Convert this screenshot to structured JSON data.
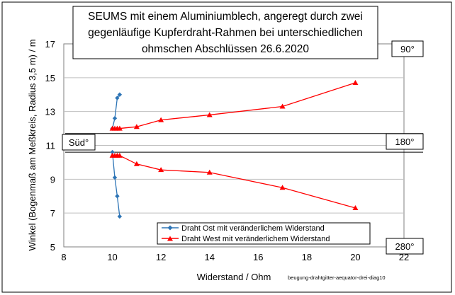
{
  "chart_data": {
    "type": "line",
    "title_lines": [
      "SEUMS mit einem Aluminiumblech, angeregt durch zwei",
      "gegenläufige Kupferdraht-Rahmen bei unterschiedlichen",
      "ohmschen Abschlüssen 26.6.2020"
    ],
    "xlabel": "Widerstand / Ohm",
    "ylabel": "Winkel (Bogenmaß am Meßkreis, Radius 3,5 m) / m",
    "xlim": [
      8,
      22
    ],
    "ylim": [
      5,
      17
    ],
    "x_ticks": [
      8,
      10,
      12,
      14,
      16,
      18,
      20,
      22
    ],
    "y_ticks": [
      5,
      7,
      9,
      11,
      13,
      15,
      17
    ],
    "x_tick_labels": [
      "8",
      "10",
      "12",
      "14",
      "16",
      "18",
      "20",
      "22"
    ],
    "y_tick_labels": [
      "5",
      "7",
      "9",
      "11",
      "13",
      "15",
      "17"
    ],
    "grid": "horizontal",
    "legend_position": "bottom-center",
    "series": [
      {
        "name": "Draht Ost mit veränderlichem Widerstand",
        "color": "#2e75b6",
        "marker": "diamond",
        "groups": [
          [
            [
              10,
              12.0
            ],
            [
              10.1,
              12.6
            ],
            [
              10.2,
              13.8
            ],
            [
              10.3,
              14.0
            ]
          ],
          [
            [
              10,
              10.6
            ],
            [
              10.1,
              9.1
            ],
            [
              10.2,
              8.0
            ],
            [
              10.3,
              6.8
            ]
          ]
        ]
      },
      {
        "name": "Draht West mit veränderlichem Widerstand",
        "color": "#ff0000",
        "marker": "triangle",
        "groups": [
          [
            [
              10,
              12.0
            ],
            [
              10.1,
              12.0
            ],
            [
              10.2,
              12.0
            ],
            [
              10.3,
              12.0
            ],
            [
              11,
              12.1
            ],
            [
              12,
              12.5
            ],
            [
              14,
              12.8
            ],
            [
              17,
              13.3
            ],
            [
              20,
              14.7
            ]
          ],
          [
            [
              10,
              10.4
            ],
            [
              10.1,
              10.4
            ],
            [
              10.2,
              10.4
            ],
            [
              10.3,
              10.4
            ],
            [
              11,
              9.9
            ],
            [
              12,
              9.55
            ],
            [
              14,
              9.4
            ],
            [
              17,
              8.5
            ],
            [
              20,
              7.3
            ]
          ]
        ]
      }
    ],
    "reference_lines": [
      {
        "y": 11.7
      },
      {
        "y": 10.6
      }
    ],
    "annotations": [
      {
        "text": "90°",
        "y": 16.5,
        "side": "right"
      },
      {
        "text": "180°",
        "y": 11.15,
        "side": "right"
      },
      {
        "text": "280°",
        "y": 5.1,
        "side": "right"
      },
      {
        "text": "Süd°",
        "y": 11.15,
        "side": "left"
      }
    ],
    "note": "beugung-drahtgitter-aequator-drei-diag10"
  }
}
